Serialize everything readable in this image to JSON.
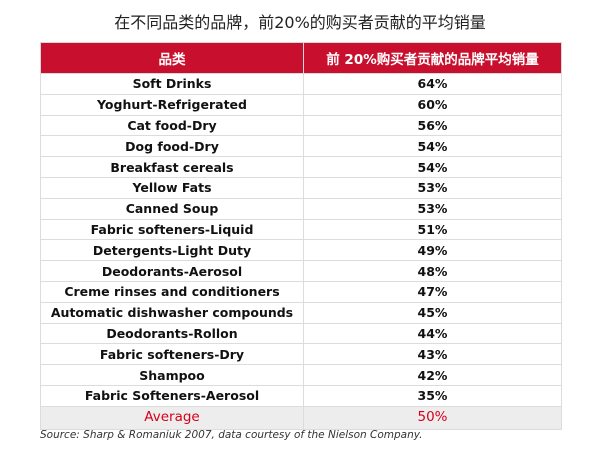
{
  "title": "在不同品类的品牌，前20%的购买者贡献的平均销量",
  "chart_data": {
    "type": "table",
    "columns": [
      "品类",
      "前 20%购买者贡献的品牌平均销量"
    ],
    "rows": [
      {
        "category": "Soft Drinks",
        "share": "64%"
      },
      {
        "category": "Yoghurt-Refrigerated",
        "share": "60%"
      },
      {
        "category": "Cat food-Dry",
        "share": "56%"
      },
      {
        "category": "Dog food-Dry",
        "share": "54%"
      },
      {
        "category": "Breakfast cereals",
        "share": "54%"
      },
      {
        "category": "Yellow Fats",
        "share": "53%"
      },
      {
        "category": "Canned Soup",
        "share": "53%"
      },
      {
        "category": "Fabric softeners-Liquid",
        "share": "51%"
      },
      {
        "category": "Detergents-Light Duty",
        "share": "49%"
      },
      {
        "category": "Deodorants-Aerosol",
        "share": "48%"
      },
      {
        "category": "Creme rinses and conditioners",
        "share": "47%"
      },
      {
        "category": "Automatic dishwasher compounds",
        "share": "45%"
      },
      {
        "category": "Deodorants-Rollon",
        "share": "44%"
      },
      {
        "category": "Fabric softeners-Dry",
        "share": "43%"
      },
      {
        "category": "Shampoo",
        "share": "42%"
      },
      {
        "category": "Fabric Softeners-Aerosol",
        "share": "35%"
      }
    ],
    "average": {
      "label": "Average",
      "value": "50%"
    },
    "colors": {
      "header_bg": "#c8102e",
      "average_text": "#d6001c",
      "average_bg": "#ededed"
    }
  },
  "source": "Source: Sharp & Romaniuk 2007, data courtesy of the Nielson Company."
}
